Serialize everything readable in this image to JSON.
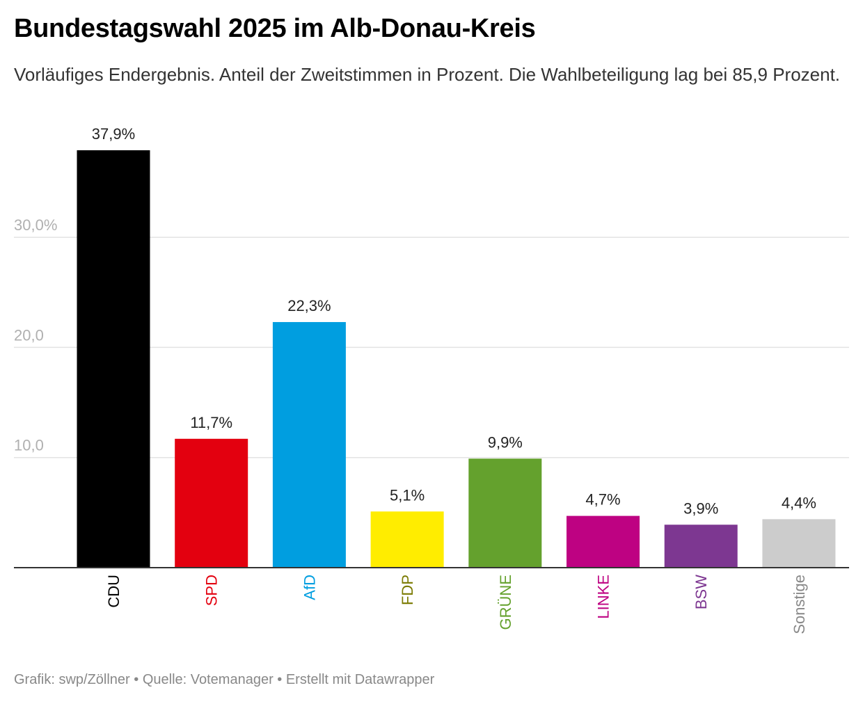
{
  "title": "Bundestagswahl 2025 im Alb-Donau-Kreis",
  "subtitle": "Vorläufiges Endergebnis. Anteil der Zweitstimmen in Prozent. Die Wahlbeteiligung lag bei 85,9 Prozent.",
  "footer": "Grafik: swp/Zöllner • Quelle: Votemanager • Erstellt mit Datawrapper",
  "chart_data": {
    "type": "bar",
    "title": "Bundestagswahl 2025 im Alb-Donau-Kreis",
    "xlabel": "",
    "ylabel": "",
    "ylim": [
      0,
      40
    ],
    "grid": true,
    "yticks": [
      {
        "value": 10,
        "label": "10,0"
      },
      {
        "value": 20,
        "label": "20,0"
      },
      {
        "value": 30,
        "label": "30,0%"
      }
    ],
    "categories": [
      "CDU",
      "SPD",
      "AfD",
      "FDP",
      "GRÜNE",
      "LINKE",
      "BSW",
      "Sonstige"
    ],
    "values": [
      37.9,
      11.7,
      22.3,
      5.1,
      9.9,
      4.7,
      3.9,
      4.4
    ],
    "value_labels": [
      "37,9%",
      "11,7%",
      "22,3%",
      "5,1%",
      "9,9%",
      "4,7%",
      "3,9%",
      "4,4%"
    ],
    "colors": [
      "#000000",
      "#e3000f",
      "#009ee0",
      "#ffed00",
      "#64a12d",
      "#be0282",
      "#7d3791",
      "#cccccc"
    ],
    "label_colors": [
      "#000000",
      "#e3000f",
      "#009ee0",
      "#7a7a00",
      "#64a12d",
      "#be0282",
      "#7d3791",
      "#888888"
    ]
  }
}
